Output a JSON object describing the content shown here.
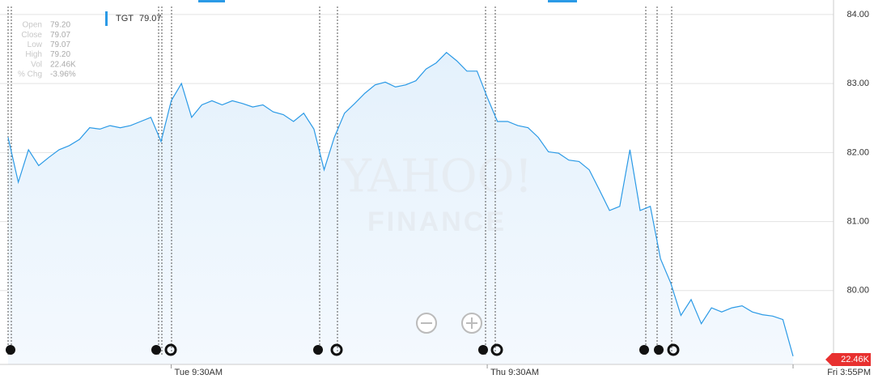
{
  "chart_data": {
    "type": "line",
    "watermark": [
      "YAHOO!",
      "FINANCE"
    ],
    "legend_panel": {
      "labels": [
        "Open",
        "Close",
        "Low",
        "High",
        "Vol",
        "% Chg"
      ],
      "values": [
        "79.20",
        "79.07",
        "79.07",
        "79.20",
        "22.46K",
        "-3.96%"
      ]
    },
    "legend_value": "79.07",
    "volume_badge": "22.46K",
    "categories": [
      null,
      null,
      null,
      null,
      null,
      null,
      null,
      null,
      null,
      null,
      null,
      null,
      null,
      null,
      null,
      null,
      "Tue 9:30AM",
      null,
      null,
      null,
      null,
      null,
      null,
      null,
      null,
      null,
      null,
      null,
      null,
      null,
      null,
      null,
      null,
      null,
      null,
      null,
      null,
      null,
      null,
      null,
      null,
      null,
      null,
      null,
      null,
      null,
      null,
      "Thu 9:30AM",
      null,
      null,
      null,
      null,
      null,
      null,
      null,
      null,
      null,
      null,
      null,
      null,
      null,
      null,
      null,
      null,
      null,
      null,
      null,
      null,
      null,
      null,
      null,
      null,
      null,
      null,
      null,
      null,
      null,
      "Fri 3:55PM"
    ],
    "series": [
      {
        "name": "TGT",
        "color": "#2b9ae6",
        "values": [
          82.22,
          81.57,
          82.04,
          81.81,
          81.93,
          82.04,
          82.1,
          82.19,
          82.36,
          82.34,
          82.39,
          82.36,
          82.39,
          82.45,
          82.51,
          82.16,
          82.75,
          83.0,
          82.51,
          82.69,
          82.75,
          82.69,
          82.75,
          82.71,
          82.66,
          82.69,
          82.59,
          82.55,
          82.45,
          82.57,
          82.34,
          81.75,
          82.22,
          82.57,
          82.71,
          82.86,
          82.98,
          83.02,
          82.95,
          82.98,
          83.04,
          83.21,
          83.3,
          83.45,
          83.33,
          83.18,
          83.18,
          82.8,
          82.45,
          82.45,
          82.39,
          82.36,
          82.22,
          82.01,
          81.99,
          81.89,
          81.87,
          81.75,
          81.46,
          81.16,
          81.22,
          82.04,
          81.16,
          81.22,
          80.46,
          80.11,
          79.64,
          79.87,
          79.52,
          79.75,
          79.69,
          79.75,
          79.78,
          79.69,
          79.65,
          79.63,
          79.58,
          79.05
        ]
      }
    ],
    "ylim": [
      78.93,
      84.21
    ],
    "yticks": [
      {
        "value": 80,
        "label": "80.00"
      },
      {
        "value": 81,
        "label": "81.00"
      },
      {
        "value": 82,
        "label": "82.00"
      },
      {
        "value": 83,
        "label": "83.00"
      },
      {
        "value": 84,
        "label": "84.00"
      }
    ],
    "grid": true
  }
}
